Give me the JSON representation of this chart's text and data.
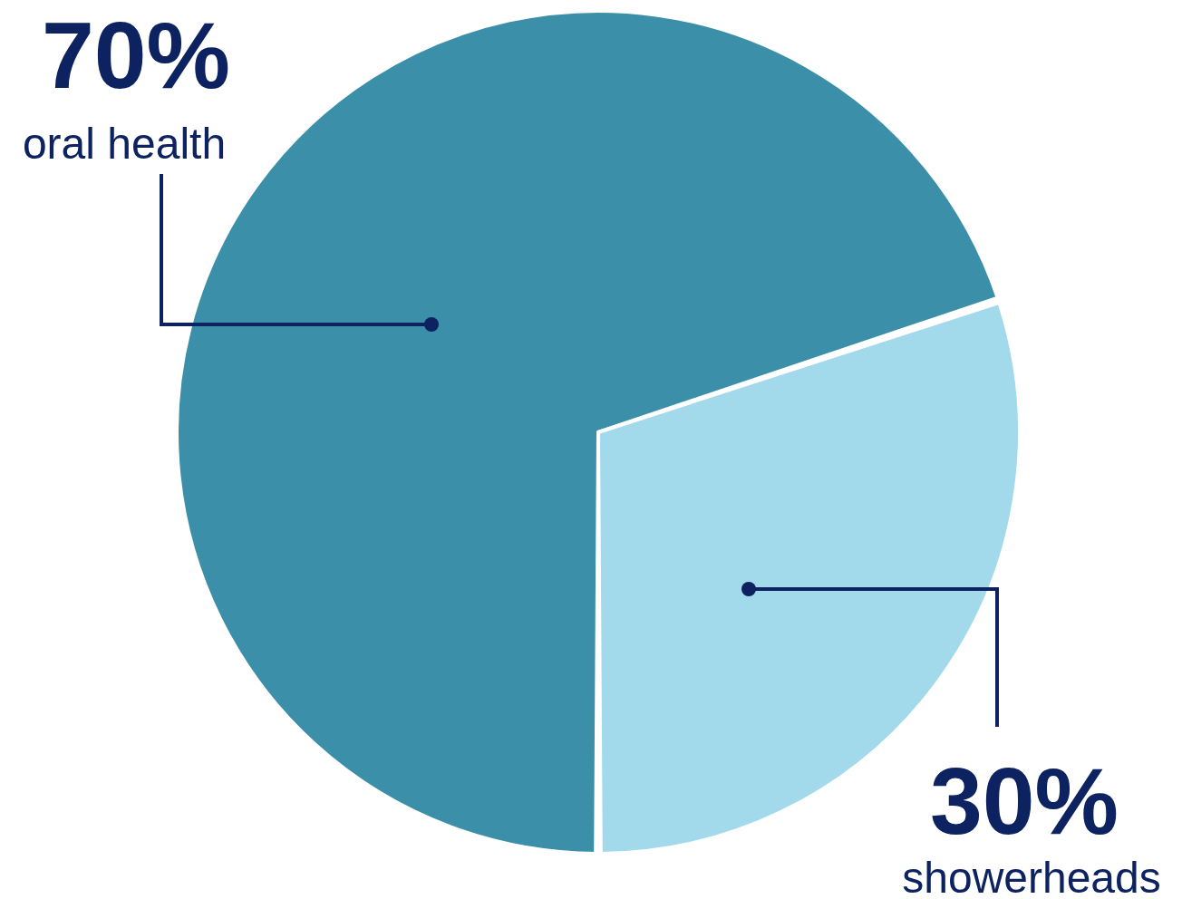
{
  "chart_data": {
    "type": "pie",
    "categories": [
      "oral health",
      "showerheads"
    ],
    "values": [
      70,
      30
    ],
    "value_labels": [
      "70%",
      "30%"
    ],
    "colors": [
      "#3b8fa9",
      "#a2daeb"
    ]
  }
}
